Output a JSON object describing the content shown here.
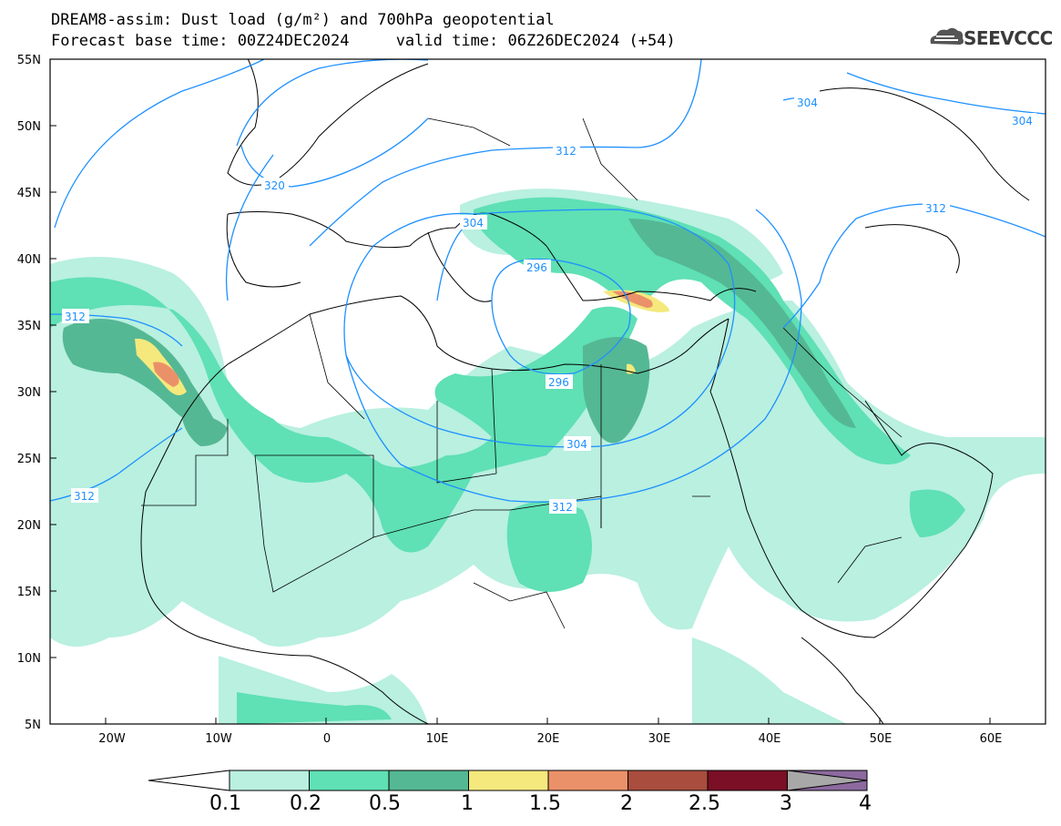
{
  "title_line1": "DREAM8-assim: Dust load (g/m²) and 700hPa geopotential",
  "title_line2": "Forecast base time: 00Z24DEC2024     valid time: 06Z26DEC2024 (+54)",
  "logo_text": "SEEVCCC",
  "lat_labels": [
    "55N",
    "50N",
    "45N",
    "40N",
    "35N",
    "30N",
    "25N",
    "20N",
    "15N",
    "10N",
    "5N"
  ],
  "lon_labels": [
    "20W",
    "10W",
    "0",
    "10E",
    "20E",
    "30E",
    "40E",
    "50E",
    "60E"
  ],
  "contour_labels": [
    "304",
    "304",
    "320",
    "312",
    "312",
    "304",
    "312",
    "296",
    "296",
    "304",
    "312",
    "312"
  ],
  "colorbar": {
    "colors": [
      "#b9f0e0",
      "#5fe0b5",
      "#55b894",
      "#f5e97d",
      "#eb9169",
      "#a94d3e",
      "#7a0f25",
      "#8c6a9f",
      "#a8a8a8"
    ],
    "tick_labels": [
      "0.1",
      "0.2",
      "0.5",
      "1",
      "1.5",
      "2",
      "2.5",
      "3",
      "4"
    ]
  }
}
